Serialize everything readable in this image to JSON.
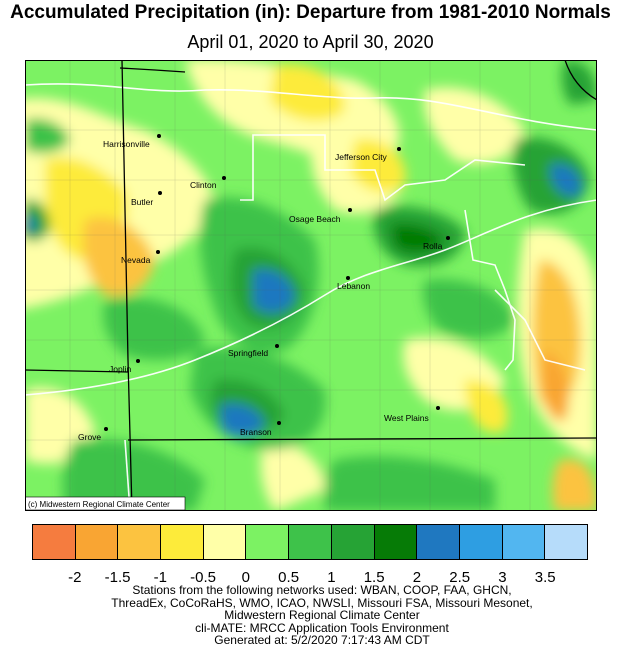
{
  "title": "Accumulated Precipitation (in): Departure from 1981-2010 Normals",
  "subtitle": "April 01, 2020 to April 30, 2020",
  "credit": "(c) Midwestern Regional Climate Center",
  "cities": [
    {
      "name": "Harrisonville"
    },
    {
      "name": "Clinton"
    },
    {
      "name": "Butler"
    },
    {
      "name": "Jefferson City"
    },
    {
      "name": "Osage Beach"
    },
    {
      "name": "Nevada"
    },
    {
      "name": "Rolla"
    },
    {
      "name": "Lebanon"
    },
    {
      "name": "Springfield"
    },
    {
      "name": "Joplin"
    },
    {
      "name": "West Plains"
    },
    {
      "name": "Grove"
    },
    {
      "name": "Branson"
    }
  ],
  "legend": {
    "colors": [
      "#f57c3f",
      "#f9a533",
      "#fcc340",
      "#fdeb3a",
      "#ffffa8",
      "#7cf263",
      "#3ec24a",
      "#26a335",
      "#067b06",
      "#1f78c0",
      "#2e9ee2",
      "#52b6f0",
      "#b6dcfa"
    ],
    "labels": [
      "-2",
      "-1.5",
      "-1",
      "-0.5",
      "0",
      "0.5",
      "1",
      "1.5",
      "2",
      "2.5",
      "3",
      "3.5"
    ]
  },
  "footer": [
    "Stations from the following networks used: WBAN, COOP, FAA, GHCN,",
    "ThreadEx, CoCoRaHS, WMO, ICAO, NWSLI, Missouri FSA, Missouri Mesonet,",
    "Midwestern Regional Climate Center",
    "cli-MATE: MRCC Application Tools Environment",
    "Generated at: 5/2/2020 7:17:43 AM CDT"
  ]
}
